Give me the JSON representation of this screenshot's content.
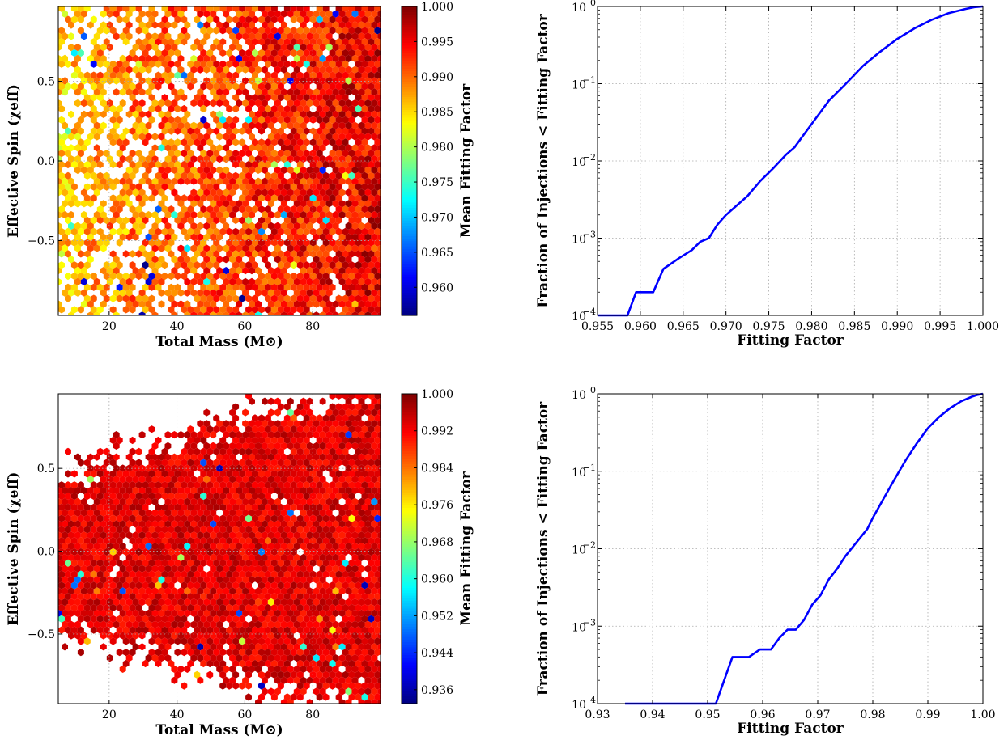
{
  "colors": {
    "line": "#0000ff",
    "grid": "#aaaaaa",
    "colormap": [
      "#00007f",
      "#0000ff",
      "#007fff",
      "#00ffff",
      "#7fff7f",
      "#ffff00",
      "#ff7f00",
      "#ff0000",
      "#7f0000"
    ]
  },
  "chart_data": [
    {
      "type": "heatmap",
      "subtype": "hexbin",
      "panel": "top-left",
      "xlabel": "Total Mass (M⊙)",
      "ylabel": "Effective Spin (χeff)",
      "colorbar_label": "Mean Fitting Factor",
      "xlim": [
        5,
        100
      ],
      "ylim": [
        -0.97,
        0.97
      ],
      "xticks": [
        20,
        40,
        60,
        80
      ],
      "xtick_labels": [
        "20",
        "40",
        "60",
        "80"
      ],
      "yticks": [
        -0.5,
        0.0,
        0.5
      ],
      "ytick_labels": [
        "−0.5",
        "0.0",
        "0.5"
      ],
      "clim": [
        0.956,
        1.0
      ],
      "cticks": [
        0.96,
        0.965,
        0.97,
        0.975,
        0.98,
        0.985,
        0.99,
        0.995,
        1.0
      ],
      "ctick_labels": [
        "0.960",
        "0.965",
        "0.970",
        "0.975",
        "0.980",
        "0.985",
        "0.990",
        "0.995",
        "1.000"
      ],
      "grid": true,
      "summary": {
        "low_mass_mean": 0.985,
        "high_mass_mean": 0.996,
        "min_value": 0.957
      }
    },
    {
      "type": "line",
      "panel": "top-right",
      "xlabel": "Fitting Factor",
      "ylabel": "Fraction of Injections < Fitting Factor",
      "yscale": "log",
      "xlim": [
        0.955,
        1.0
      ],
      "ylim": [
        0.0001,
        1
      ],
      "xticks": [
        0.955,
        0.96,
        0.965,
        0.97,
        0.975,
        0.98,
        0.985,
        0.99,
        0.995,
        1.0
      ],
      "xtick_labels": [
        "0.955",
        "0.960",
        "0.965",
        "0.970",
        "0.975",
        "0.980",
        "0.985",
        "0.990",
        "0.995",
        "1.000"
      ],
      "yticks": [
        0.0001,
        0.001,
        0.01,
        0.1,
        1
      ],
      "ytick_labels": [
        {
          "base": "10",
          "exp": "−4"
        },
        {
          "base": "10",
          "exp": "−3"
        },
        {
          "base": "10",
          "exp": "−2"
        },
        {
          "base": "10",
          "exp": "−1"
        },
        {
          "base": "10",
          "exp": "0"
        }
      ],
      "grid": true,
      "series": [
        {
          "x": [
            0.955,
            0.9575,
            0.9585,
            0.9595,
            0.9615,
            0.9627,
            0.9645,
            0.966,
            0.967,
            0.968,
            0.969,
            0.97,
            0.971,
            0.9725,
            0.974,
            0.9755,
            0.977,
            0.978,
            0.98,
            0.982,
            0.984,
            0.986,
            0.988,
            0.99,
            0.992,
            0.994,
            0.996,
            0.998,
            0.999,
            1.0
          ],
          "y": [
            0.0001,
            0.0001,
            0.0001,
            0.0002,
            0.0002,
            0.0004,
            0.00055,
            0.0007,
            0.0009,
            0.001,
            0.0015,
            0.002,
            0.0025,
            0.0035,
            0.0055,
            0.008,
            0.012,
            0.015,
            0.03,
            0.06,
            0.1,
            0.17,
            0.26,
            0.38,
            0.52,
            0.67,
            0.82,
            0.93,
            0.98,
            1.0
          ]
        }
      ]
    },
    {
      "type": "heatmap",
      "subtype": "hexbin",
      "panel": "bottom-left",
      "xlabel": "Total Mass (M⊙)",
      "ylabel": "Effective Spin (χeff)",
      "colorbar_label": "Mean Fitting Factor",
      "xlim": [
        5,
        100
      ],
      "ylim": [
        -0.92,
        0.95
      ],
      "xticks": [
        20,
        40,
        60,
        80
      ],
      "xtick_labels": [
        "20",
        "40",
        "60",
        "80"
      ],
      "yticks": [
        -0.5,
        0.0,
        0.5
      ],
      "ytick_labels": [
        "−0.5",
        "0.0",
        "0.5"
      ],
      "clim": [
        0.933,
        1.0
      ],
      "cticks": [
        0.936,
        0.944,
        0.952,
        0.96,
        0.968,
        0.976,
        0.984,
        0.992,
        1.0
      ],
      "ctick_labels": [
        "0.936",
        "0.944",
        "0.952",
        "0.960",
        "0.968",
        "0.976",
        "0.984",
        "0.992",
        "1.000"
      ],
      "grid": true,
      "summary": {
        "mean_value": 0.994,
        "min_value": 0.935
      }
    },
    {
      "type": "line",
      "panel": "bottom-right",
      "xlabel": "Fitting Factor",
      "ylabel": "Fraction of Injections < Fitting Factor",
      "yscale": "log",
      "xlim": [
        0.93,
        1.0
      ],
      "ylim": [
        0.0001,
        1
      ],
      "xticks": [
        0.93,
        0.94,
        0.95,
        0.96,
        0.97,
        0.98,
        0.99,
        1.0
      ],
      "xtick_labels": [
        "0.93",
        "0.94",
        "0.95",
        "0.96",
        "0.97",
        "0.98",
        "0.99",
        "1.00"
      ],
      "yticks": [
        0.0001,
        0.001,
        0.01,
        0.1,
        1
      ],
      "ytick_labels": [
        {
          "base": "10",
          "exp": "−4"
        },
        {
          "base": "10",
          "exp": "−3"
        },
        {
          "base": "10",
          "exp": "−2"
        },
        {
          "base": "10",
          "exp": "−1"
        },
        {
          "base": "10",
          "exp": "0"
        }
      ],
      "grid": true,
      "series": [
        {
          "x": [
            0.935,
            0.951,
            0.9515,
            0.9545,
            0.9575,
            0.9595,
            0.9615,
            0.963,
            0.9645,
            0.966,
            0.9675,
            0.969,
            0.9705,
            0.972,
            0.9735,
            0.975,
            0.977,
            0.979,
            0.98,
            0.982,
            0.984,
            0.986,
            0.988,
            0.99,
            0.992,
            0.994,
            0.996,
            0.998,
            0.999,
            1.0
          ],
          "y": [
            0.0001,
            0.0001,
            0.0001,
            0.0004,
            0.0004,
            0.0005,
            0.0005,
            0.0007,
            0.0009,
            0.0009,
            0.0012,
            0.0019,
            0.0025,
            0.004,
            0.0055,
            0.008,
            0.012,
            0.018,
            0.025,
            0.045,
            0.08,
            0.14,
            0.23,
            0.36,
            0.5,
            0.65,
            0.8,
            0.92,
            0.97,
            1.0
          ]
        }
      ]
    }
  ]
}
